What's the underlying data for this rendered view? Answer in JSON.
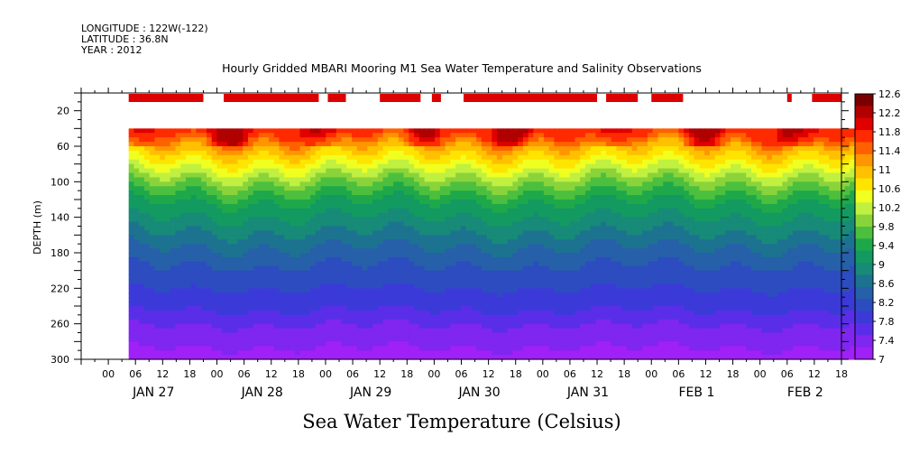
{
  "header": {
    "longitude": "LONGITUDE : 122W(-122)",
    "latitude": "LATITUDE : 36.8N",
    "year": "YEAR : 2012"
  },
  "chart_data": {
    "type": "heatmap",
    "title": "Hourly Gridded MBARI Mooring M1 Sea Water Temperature and Salinity Observations",
    "xlabel": "Sea Water Temperature (Celsius)",
    "ylabel": "DEPTH (m)",
    "x_range_hours": [
      -6,
      162
    ],
    "x_hour_ticks": [
      "00",
      "06",
      "12",
      "18",
      "00",
      "06",
      "12",
      "18",
      "00",
      "06",
      "12",
      "18",
      "00",
      "06",
      "12",
      "18",
      "00",
      "06",
      "12",
      "18",
      "00",
      "06",
      "12",
      "18",
      "00",
      "06",
      "12",
      "18"
    ],
    "x_day_labels": [
      "JAN 27",
      "JAN 28",
      "JAN 29",
      "JAN 30",
      "JAN 31",
      "FEB  1",
      "FEB  2"
    ],
    "y_range": [
      0,
      300
    ],
    "y_ticks": [
      20,
      60,
      100,
      140,
      180,
      220,
      260,
      300
    ],
    "y_reversed": true,
    "data_depth_range": [
      40,
      300
    ],
    "data_time_range_hours": [
      4.5,
      165
    ],
    "colorbar": {
      "levels": [
        "12.6",
        "12.2",
        "11.8",
        "11.4",
        "11",
        "10.6",
        "10.2",
        "9.8",
        "9.4",
        "9",
        "8.6",
        "8.2",
        "7.8",
        "7.4",
        "7"
      ],
      "colors": [
        "#7a0000",
        "#b00000",
        "#e00000",
        "#ff2a00",
        "#ff6000",
        "#ff9500",
        "#ffc000",
        "#ffe400",
        "#f0ff20",
        "#c0f040",
        "#8ad43a",
        "#4cbf3e",
        "#1fa84a",
        "#129a60",
        "#178a78",
        "#1c7390",
        "#2660a8",
        "#2c4cc0",
        "#3b3ad8",
        "#5a2ee8",
        "#7f26f0",
        "#a020f8"
      ]
    },
    "surface_bars_hours": [
      [
        4.5,
        21
      ],
      [
        25.5,
        46.5
      ],
      [
        48.5,
        52.5
      ],
      [
        60,
        69
      ],
      [
        71.5,
        73.5
      ],
      [
        78.5,
        108
      ],
      [
        110,
        117
      ],
      [
        120,
        127
      ],
      [
        150,
        151
      ],
      [
        155.5,
        162
      ]
    ],
    "temperature_profile": [
      {
        "depth": 40,
        "temp": 11.8
      },
      {
        "depth": 60,
        "temp": 11.0
      },
      {
        "depth": 80,
        "temp": 10.4
      },
      {
        "depth": 100,
        "temp": 9.8
      },
      {
        "depth": 120,
        "temp": 9.3
      },
      {
        "depth": 140,
        "temp": 9.0
      },
      {
        "depth": 160,
        "temp": 8.7
      },
      {
        "depth": 180,
        "temp": 8.4
      },
      {
        "depth": 200,
        "temp": 8.2
      },
      {
        "depth": 220,
        "temp": 8.0
      },
      {
        "depth": 240,
        "temp": 7.8
      },
      {
        "depth": 260,
        "temp": 7.5
      },
      {
        "depth": 280,
        "temp": 7.3
      },
      {
        "depth": 300,
        "temp": 7.1
      }
    ]
  }
}
